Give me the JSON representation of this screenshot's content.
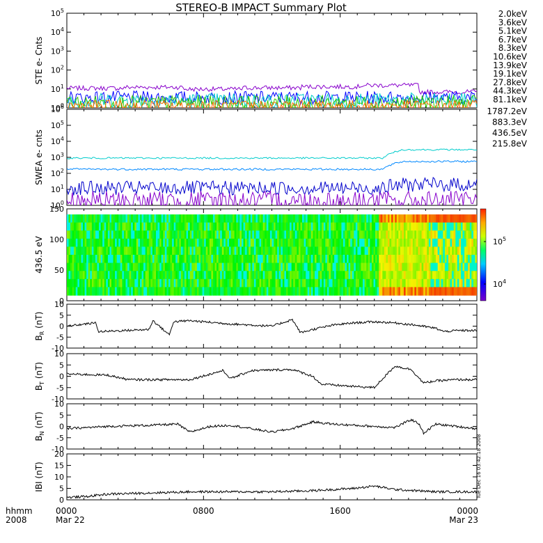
{
  "title": "STEREO-B IMPACT Summary Plot",
  "footer": {
    "corner_top": "hhmm",
    "corner_bottom": "2008",
    "ticks": [
      {
        "time": "0000",
        "date": "Mar 22"
      },
      {
        "time": "0800",
        "date": ""
      },
      {
        "time": "1600",
        "date": ""
      },
      {
        "time": "0000",
        "date": "Mar 23"
      }
    ]
  },
  "timestamp": "Tue Dec 16 03:42:18 2008",
  "chart_data": [
    {
      "type": "line",
      "name": "ste",
      "ylabel": "STE e- Cnts",
      "y_scale": "log",
      "ylim": [
        1,
        100000
      ],
      "yticks": [
        {
          "base": "10",
          "exp": "5"
        },
        {
          "base": "10",
          "exp": "4"
        },
        {
          "base": "10",
          "exp": "3"
        },
        {
          "base": "10",
          "exp": "2"
        },
        {
          "base": "10",
          "exp": "1"
        },
        {
          "base": "10",
          "exp": "0"
        }
      ],
      "legend_position": "right",
      "legend": [
        {
          "label": "2.0keV",
          "color": "#8800cc"
        },
        {
          "label": "3.6keV",
          "color": "#5500cc"
        },
        {
          "label": "5.1keV",
          "color": "#0000ff"
        },
        {
          "label": "6.7keV",
          "color": "#0088ff"
        },
        {
          "label": "8.3keV",
          "color": "#00cccc"
        },
        {
          "label": "10.6keV",
          "color": "#00cc66"
        },
        {
          "label": "13.9keV",
          "color": "#33cc00"
        },
        {
          "label": "19.1keV",
          "color": "#cccc00"
        },
        {
          "label": "27.8keV",
          "color": "#ff9900"
        },
        {
          "label": "44.3keV",
          "color": "#ff6600"
        },
        {
          "label": "81.1keV",
          "color": "#ff0000"
        }
      ],
      "series": [
        {
          "color": "#8800cc",
          "level": 11,
          "var": 0.12,
          "drift": [
            0.0,
            0.05,
            -0.05,
            0.02,
            0.08,
            0.15,
            -0.2
          ]
        },
        {
          "color": "#0000ff",
          "level": 3.5,
          "var": 0.35
        },
        {
          "color": "#00cccc",
          "level": 2.5,
          "var": 0.4
        },
        {
          "color": "#33cc00",
          "level": 1.8,
          "var": 0.4
        },
        {
          "color": "#ff6600",
          "level": 1.3,
          "var": 0.3
        }
      ]
    },
    {
      "type": "line",
      "name": "swea",
      "ylabel": "SWEA e- cnts",
      "y_scale": "log",
      "ylim": [
        1,
        1000000
      ],
      "yticks": [
        {
          "base": "10",
          "exp": "6"
        },
        {
          "base": "10",
          "exp": "5"
        },
        {
          "base": "10",
          "exp": "4"
        },
        {
          "base": "10",
          "exp": "3"
        },
        {
          "base": "10",
          "exp": "2"
        },
        {
          "base": "10",
          "exp": "1"
        },
        {
          "base": "10",
          "exp": "0"
        }
      ],
      "legend_position": "right",
      "legend": [
        {
          "label": "1787.2eV",
          "color": "#8800cc"
        },
        {
          "label": "883.3eV",
          "color": "#0000cc"
        },
        {
          "label": "436.5eV",
          "color": "#0088ff"
        },
        {
          "label": "215.8eV",
          "color": "#00cccc"
        }
      ],
      "series": [
        {
          "color": "#00cccc",
          "level": 900,
          "var": 0.05,
          "rise_at": 0.77,
          "rise_to": 3000
        },
        {
          "color": "#0088ff",
          "level": 180,
          "var": 0.06,
          "rise_at": 0.77,
          "rise_to": 550
        },
        {
          "color": "#0000cc",
          "level": 12,
          "var": 0.45,
          "rise_at": 0.77,
          "rise_to": 20
        },
        {
          "color": "#8800cc",
          "level": 2,
          "var": 0.6
        }
      ]
    },
    {
      "type": "heatmap",
      "name": "pitch",
      "ylabel": "436.5 eV",
      "ylim": [
        0,
        180
      ],
      "yticks": [
        "150",
        "100",
        "50",
        "0"
      ],
      "colorbar": {
        "ticks": [
          {
            "base": "10",
            "exp": "5"
          },
          {
            "base": "10",
            "exp": "4"
          }
        ]
      }
    },
    {
      "type": "line",
      "name": "br",
      "ylabel_main": "B",
      "ylabel_sub": "R",
      "ylabel_unit": "(nT)",
      "ylim": [
        -10,
        10
      ],
      "yticks": [
        "10",
        "5",
        "0",
        "-5",
        "-10"
      ],
      "x": [
        0,
        0.07,
        0.078,
        0.2,
        0.21,
        0.25,
        0.26,
        0.3,
        0.4,
        0.5,
        0.55,
        0.57,
        0.6,
        0.65,
        0.7,
        0.75,
        0.8,
        0.85,
        0.9,
        0.92,
        0.95,
        1
      ],
      "y": [
        0,
        1.5,
        -2.5,
        -1.5,
        2.5,
        -4,
        2,
        2.5,
        1,
        0,
        3,
        -3,
        -1.5,
        0.5,
        1.5,
        2,
        1.5,
        0.5,
        -1,
        -2.5,
        -2,
        -2
      ]
    },
    {
      "type": "line",
      "name": "bt",
      "ylabel_main": "B",
      "ylabel_sub": "T",
      "ylabel_unit": "(nT)",
      "ylim": [
        -10,
        10
      ],
      "yticks": [
        "10",
        "5",
        "0",
        "-5",
        "-10"
      ],
      "x": [
        0,
        0.1,
        0.15,
        0.3,
        0.38,
        0.4,
        0.45,
        0.55,
        0.6,
        0.62,
        0.7,
        0.75,
        0.76,
        0.8,
        0.84,
        0.86,
        0.87,
        0.9,
        0.95,
        1
      ],
      "y": [
        1,
        0.5,
        -1.5,
        -1.5,
        2.5,
        -1,
        2.5,
        3,
        0,
        -3.5,
        -4.5,
        -5,
        -3,
        4.5,
        3,
        -1,
        -3,
        -2,
        -1.5,
        -1.5
      ]
    },
    {
      "type": "line",
      "name": "bn",
      "ylabel_main": "B",
      "ylabel_sub": "N",
      "ylabel_unit": "(nT)",
      "ylim": [
        -10,
        10
      ],
      "yticks": [
        "10",
        "5",
        "0",
        "-5",
        "-10"
      ],
      "x": [
        0,
        0.1,
        0.2,
        0.27,
        0.3,
        0.35,
        0.4,
        0.45,
        0.5,
        0.55,
        0.6,
        0.65,
        0.7,
        0.75,
        0.8,
        0.84,
        0.86,
        0.87,
        0.9,
        0.95,
        1
      ],
      "y": [
        -1,
        0,
        0.5,
        1,
        -2.5,
        0,
        0.5,
        -1,
        -2.5,
        -1,
        2,
        1,
        0.5,
        0,
        -0.5,
        3,
        1,
        -3,
        1,
        0,
        -1
      ]
    },
    {
      "type": "line",
      "name": "bmag",
      "ylabel_main": "IBI",
      "ylabel_sub": "",
      "ylabel_unit": "(nT)",
      "ylim": [
        0,
        20
      ],
      "yticks": [
        "20",
        "15",
        "10",
        "5",
        "0"
      ],
      "x": [
        0,
        0.05,
        0.1,
        0.2,
        0.3,
        0.4,
        0.5,
        0.6,
        0.7,
        0.75,
        0.8,
        0.9,
        1
      ],
      "y": [
        1,
        1.5,
        2.5,
        3,
        3.5,
        3.5,
        3.5,
        4,
        5,
        6,
        4.5,
        3.5,
        3.5
      ]
    }
  ]
}
